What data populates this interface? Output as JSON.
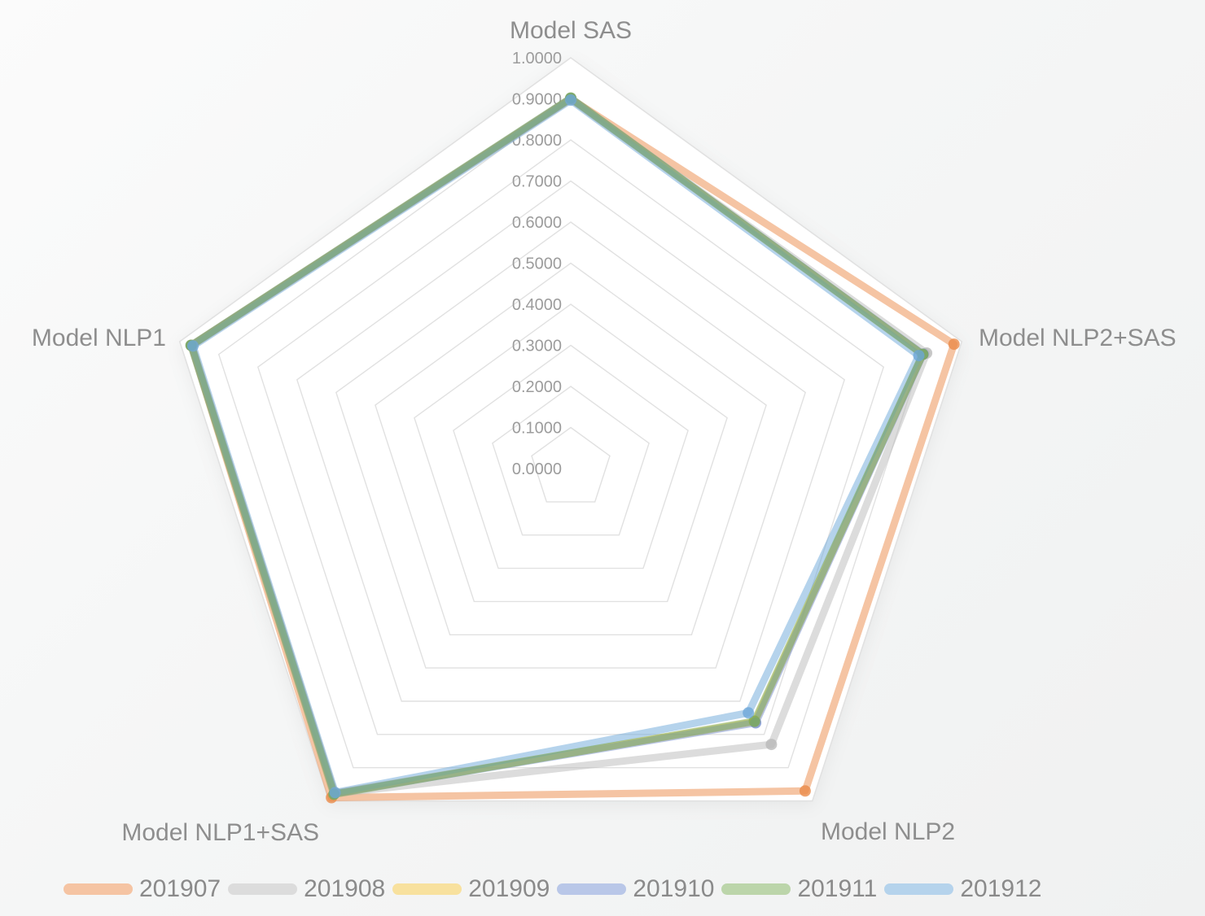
{
  "chart_data": {
    "type": "radar",
    "title": "",
    "axis_range": [
      0.0,
      1.0
    ],
    "tick_step": 0.1,
    "grid": "pentagon-rings",
    "legend_position": "bottom",
    "tick_labels": [
      "0.0000",
      "0.1000",
      "0.2000",
      "0.3000",
      "0.4000",
      "0.5000",
      "0.6000",
      "0.7000",
      "0.8000",
      "0.9000",
      "1.0000"
    ],
    "indicators": [
      {
        "name": "Model SAS",
        "max": 1.0
      },
      {
        "name": "Model NLP2+SAS",
        "max": 1.0
      },
      {
        "name": "Model NLP2",
        "max": 1.0
      },
      {
        "name": "Model NLP1+SAS",
        "max": 1.0
      },
      {
        "name": "Model NLP1",
        "max": 1.0
      }
    ],
    "series": [
      {
        "name": "201907",
        "line_color": "#EB8947",
        "swatch_color": "#F5C4A3",
        "values": [
          0.9,
          0.98,
          0.97,
          0.99,
          0.97
        ]
      },
      {
        "name": "201908",
        "line_color": "#B9B9B9",
        "swatch_color": "#DCDCDC",
        "values": [
          0.9,
          0.91,
          0.83,
          0.978,
          0.97
        ]
      },
      {
        "name": "201909",
        "line_color": "#F1C33D",
        "swatch_color": "#F8E19E",
        "values": [
          0.9,
          0.9,
          0.762,
          0.977,
          0.969
        ]
      },
      {
        "name": "201910",
        "line_color": "#738FD1",
        "swatch_color": "#B9C7E8",
        "values": [
          0.901,
          0.901,
          0.765,
          0.978,
          0.97
        ]
      },
      {
        "name": "201911",
        "line_color": "#79AB55",
        "swatch_color": "#BCD5AA",
        "values": [
          0.902,
          0.9,
          0.76,
          0.98,
          0.971
        ]
      },
      {
        "name": "201912",
        "line_color": "#6BA7D9",
        "swatch_color": "#B5D3EC",
        "values": [
          0.897,
          0.89,
          0.735,
          0.975,
          0.966
        ]
      }
    ],
    "grid_color": "#E1E1E1",
    "plot_fill": "#FFFFFF",
    "text_color": "#8E8E8E"
  }
}
